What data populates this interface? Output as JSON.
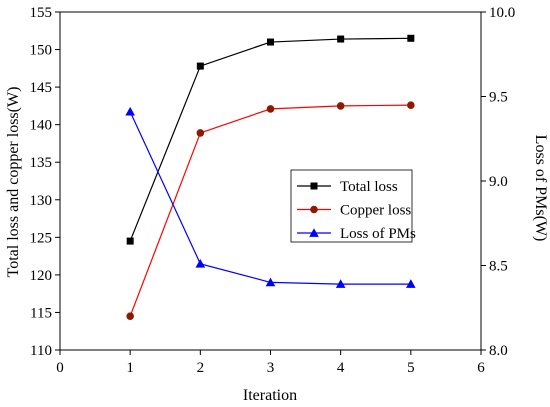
{
  "chart_data": {
    "type": "line",
    "xlabel": "Iteration",
    "ylabel_left": "Total loss and copper loss(W)",
    "ylabel_right": "Loss of PMs(W)",
    "xlim": [
      0,
      6
    ],
    "ylim_left": [
      110,
      155
    ],
    "ylim_right": [
      8.0,
      10.0
    ],
    "x_ticks": [
      0,
      1,
      2,
      3,
      4,
      5,
      6
    ],
    "y_left_ticks": [
      110,
      115,
      120,
      125,
      130,
      135,
      140,
      145,
      150,
      155
    ],
    "y_right_ticks": [
      "8.0",
      "8.5",
      "9.0",
      "9.5",
      "10.0"
    ],
    "grid": false,
    "legend_position": "center-right",
    "series": [
      {
        "name": "Total loss",
        "axis": "left",
        "color": "#000000",
        "marker": "square",
        "x": [
          1,
          2,
          3,
          4,
          5
        ],
        "y": [
          124.5,
          147.8,
          151.0,
          151.4,
          151.5
        ]
      },
      {
        "name": "Copper loss",
        "axis": "left",
        "color": "#ff0000",
        "marker_color": "#8b1a00",
        "marker": "circle",
        "x": [
          1,
          2,
          3,
          4,
          5
        ],
        "y": [
          114.5,
          138.9,
          142.1,
          142.5,
          142.6
        ]
      },
      {
        "name": "Loss of PMs",
        "axis": "right",
        "color": "#0000ff",
        "marker": "triangle",
        "x": [
          1,
          2,
          3,
          4,
          5
        ],
        "y": [
          9.41,
          8.51,
          8.4,
          8.39,
          8.39
        ]
      }
    ]
  }
}
